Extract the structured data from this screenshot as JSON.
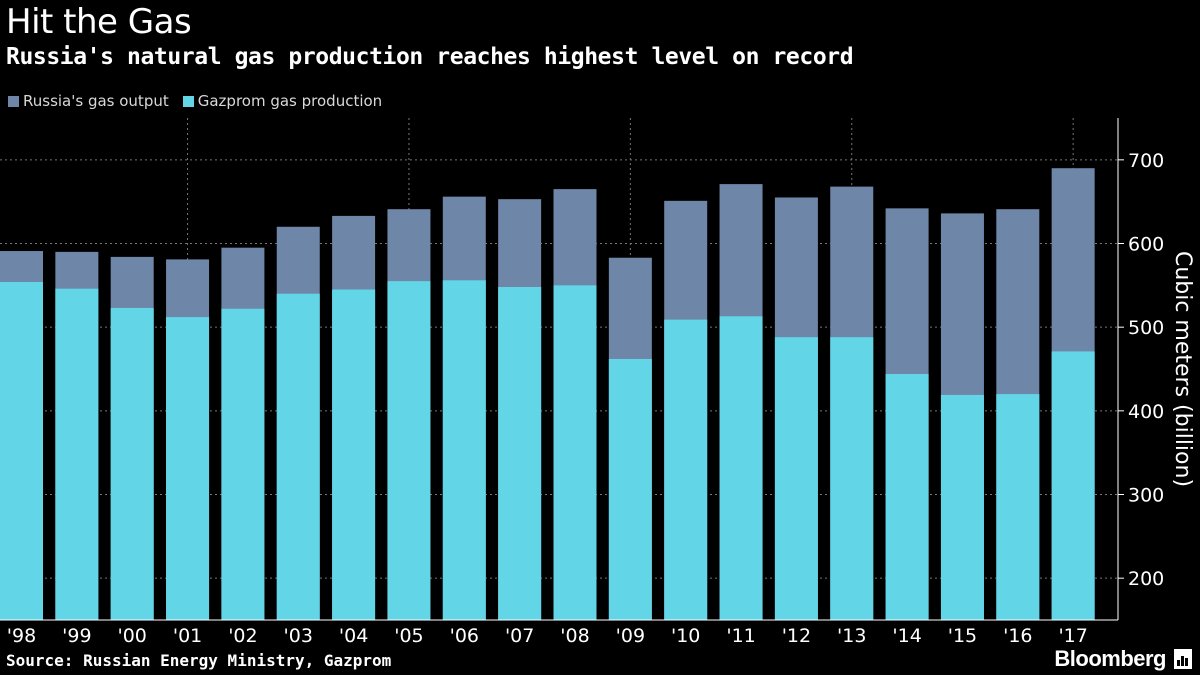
{
  "header": {
    "title": "Hit the Gas",
    "subtitle": "Russia's natural gas production reaches highest level on record"
  },
  "legend": [
    {
      "label": "Russia's gas output",
      "color": "#6e86a8"
    },
    {
      "label": "Gazprom gas production",
      "color": "#62d6e6"
    }
  ],
  "footer": {
    "source": "Source: Russian Energy Ministry, Gazprom",
    "brand": "Bloomberg"
  },
  "chart_data": {
    "type": "bar",
    "stacking": "overlay",
    "categories": [
      "'98",
      "'99",
      "'00",
      "'01",
      "'02",
      "'03",
      "'04",
      "'05",
      "'06",
      "'07",
      "'08",
      "'09",
      "'10",
      "'11",
      "'12",
      "'13",
      "'14",
      "'15",
      "'16",
      "'17"
    ],
    "series": [
      {
        "name": "Russia's gas output",
        "color": "#6e86a8",
        "values": [
          591,
          590,
          584,
          581,
          595,
          620,
          633,
          641,
          656,
          653,
          665,
          583,
          651,
          671,
          655,
          668,
          642,
          636,
          641,
          690
        ]
      },
      {
        "name": "Gazprom gas production",
        "color": "#62d6e6",
        "values": [
          554,
          546,
          523,
          512,
          522,
          540,
          545,
          555,
          556,
          548,
          550,
          462,
          509,
          513,
          488,
          488,
          444,
          419,
          420,
          471
        ]
      }
    ],
    "ylabel": "Cubic meters (billion)",
    "yticks": [
      200,
      300,
      400,
      500,
      600,
      700
    ],
    "ylim": [
      150,
      750
    ],
    "y_axis_position": "right",
    "grid": true,
    "legend_position": "top-left"
  }
}
